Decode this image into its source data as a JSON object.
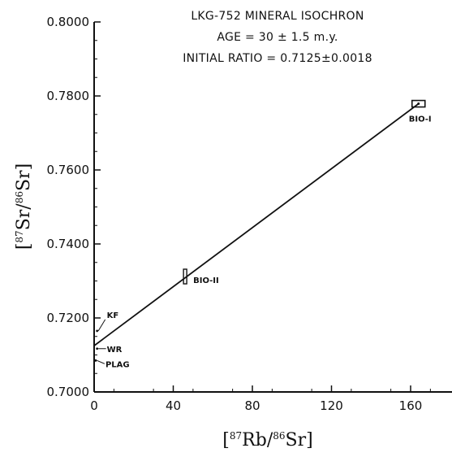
{
  "chart_data": {
    "type": "scatter",
    "title_lines": [
      "LKG-752 MINERAL ISOCHRON",
      "AGE = 30 ± 1.5 m.y.",
      "INITIAL RATIO = 0.7125±0.0018"
    ],
    "xlabel": {
      "sup1": "87",
      "main1": "Rb",
      "sup2": "86",
      "main2": "Sr"
    },
    "ylabel": {
      "sup1": "87",
      "main1": "Sr",
      "sup2": "86",
      "main2": "Sr"
    },
    "xlim": [
      0,
      170
    ],
    "ylim": [
      0.7,
      0.8
    ],
    "x_ticks": [
      0,
      40,
      80,
      120,
      160
    ],
    "x_tick_labels": [
      "0",
      "40",
      "80",
      "120",
      "160"
    ],
    "y_ticks": [
      0.7,
      0.72,
      0.74,
      0.76,
      0.78,
      0.8
    ],
    "y_tick_labels": [
      "0.7000",
      "0.7200",
      "0.7400",
      "0.7600",
      "0.7800",
      "0.8000"
    ],
    "grid": false,
    "isochron_line": {
      "x": [
        0,
        164
      ],
      "y": [
        0.7125,
        0.7779
      ]
    },
    "points": [
      {
        "label": "KF",
        "x": 1.5,
        "y": 0.7165
      },
      {
        "label": "WR",
        "x": 1.5,
        "y": 0.7117
      },
      {
        "label": "PLAG",
        "x": 0.8,
        "y": 0.7085
      },
      {
        "label": "BIO-II",
        "x": 46,
        "y": 0.7312
      },
      {
        "label": "BIO-I",
        "x": 164,
        "y": 0.7779
      }
    ]
  }
}
